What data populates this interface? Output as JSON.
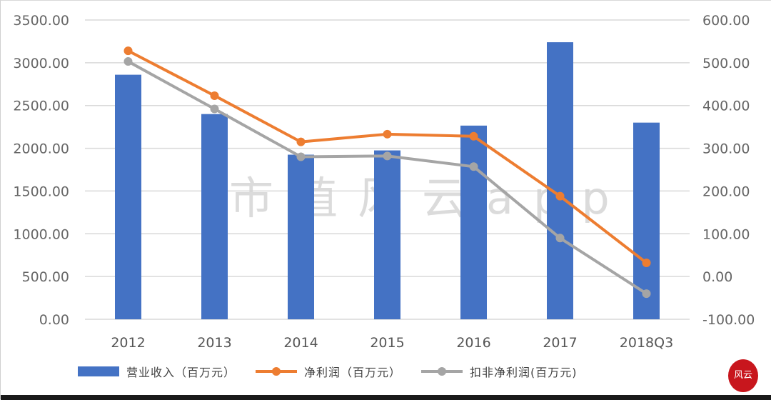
{
  "chart_data": {
    "type": "bar",
    "title": "",
    "categories": [
      "2012",
      "2013",
      "2014",
      "2015",
      "2016",
      "2017",
      "2018Q3"
    ],
    "series": [
      {
        "name": "营业收入（百万元）",
        "type": "bar",
        "axis": "left",
        "color": "#4472C4",
        "values": [
          2860,
          2400,
          1925,
          1975,
          2265,
          3240,
          2300
        ]
      },
      {
        "name": "净利润（百万元）",
        "type": "line",
        "axis": "right",
        "color": "#ED7D31",
        "values": [
          528,
          423,
          315,
          333,
          328,
          188,
          32
        ]
      },
      {
        "name": "扣非净利润（百万元）",
        "type": "line",
        "axis": "right",
        "color": "#A5A5A5",
        "values": [
          503,
          392,
          280,
          282,
          257,
          90,
          -40
        ]
      }
    ],
    "left_axis": {
      "ylim": [
        0,
        3500
      ],
      "ticks": [
        "0.00",
        "500.00",
        "1000.00",
        "1500.00",
        "2000.00",
        "2500.00",
        "3000.00",
        "3500.00"
      ]
    },
    "right_axis": {
      "ylim": [
        -100,
        600
      ],
      "ticks": [
        "-100.00",
        "0.00",
        "100.00",
        "200.00",
        "300.00",
        "400.00",
        "500.00",
        "600.00"
      ]
    },
    "xlabel": "",
    "ylabel": "",
    "grid": true,
    "legend_position": "bottom",
    "watermark": "市值风云app"
  },
  "legend": {
    "items": [
      {
        "label": "营业收入（百万元）",
        "color": "#4472C4",
        "kind": "bar"
      },
      {
        "label": "净利润（百万元）",
        "color": "#ED7D31",
        "kind": "line"
      },
      {
        "label": "扣非净利润(百万元)",
        "color": "#A5A5A5",
        "kind": "line"
      }
    ]
  },
  "logo": {
    "text": "风云"
  }
}
